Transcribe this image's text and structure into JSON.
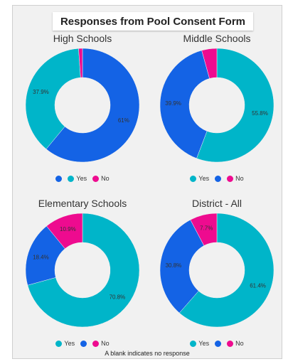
{
  "title": "Responses from Pool Consent Form",
  "footnote": "A blank indicates no response",
  "colors": {
    "yes": "#00b5c9",
    "blank": "#1463e5",
    "no": "#ee0b8f"
  },
  "chart_data": [
    {
      "type": "pie",
      "title": "High Schools",
      "slices": [
        {
          "label": "",
          "value": 61.0,
          "color": "#1463e5",
          "display": "61%"
        },
        {
          "label": "Yes",
          "value": 37.9,
          "color": "#00b5c9",
          "display": "37.9%"
        },
        {
          "label": "No",
          "value": 1.1,
          "color": "#ee0b8f",
          "display": ""
        }
      ],
      "legend": [
        {
          "label": "",
          "color": "#1463e5"
        },
        {
          "label": "Yes",
          "color": "#00b5c9"
        },
        {
          "label": "No",
          "color": "#ee0b8f"
        }
      ]
    },
    {
      "type": "pie",
      "title": "Middle Schools",
      "slices": [
        {
          "label": "Yes",
          "value": 55.8,
          "color": "#00b5c9",
          "display": "55.8%"
        },
        {
          "label": "",
          "value": 39.9,
          "color": "#1463e5",
          "display": "39.9%"
        },
        {
          "label": "No",
          "value": 4.3,
          "color": "#ee0b8f",
          "display": ""
        }
      ],
      "legend": [
        {
          "label": "Yes",
          "color": "#00b5c9"
        },
        {
          "label": "",
          "color": "#1463e5"
        },
        {
          "label": "No",
          "color": "#ee0b8f"
        }
      ]
    },
    {
      "type": "pie",
      "title": "Elementary Schools",
      "slices": [
        {
          "label": "Yes",
          "value": 70.8,
          "color": "#00b5c9",
          "display": "70.8%"
        },
        {
          "label": "",
          "value": 18.4,
          "color": "#1463e5",
          "display": "18.4%"
        },
        {
          "label": "No",
          "value": 10.9,
          "color": "#ee0b8f",
          "display": "10.9%"
        }
      ],
      "legend": [
        {
          "label": "Yes",
          "color": "#00b5c9"
        },
        {
          "label": "",
          "color": "#1463e5"
        },
        {
          "label": "No",
          "color": "#ee0b8f"
        }
      ]
    },
    {
      "type": "pie",
      "title": "District - All",
      "slices": [
        {
          "label": "Yes",
          "value": 61.4,
          "color": "#00b5c9",
          "display": "61.4%"
        },
        {
          "label": "",
          "value": 30.8,
          "color": "#1463e5",
          "display": "30.8%"
        },
        {
          "label": "No",
          "value": 7.7,
          "color": "#ee0b8f",
          "display": "7.7%"
        }
      ],
      "legend": [
        {
          "label": "Yes",
          "color": "#00b5c9"
        },
        {
          "label": "",
          "color": "#1463e5"
        },
        {
          "label": "No",
          "color": "#ee0b8f"
        }
      ]
    }
  ]
}
